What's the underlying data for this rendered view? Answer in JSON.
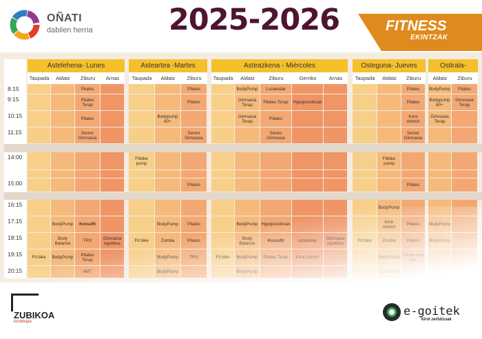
{
  "header": {
    "town": "OÑATI",
    "town_sub": "dabilen herria",
    "season": "2025-2026",
    "fitness_title": "FITNESS",
    "fitness_sub": "EKINTZAK"
  },
  "colors": {
    "yellow_head": "#f4c02b",
    "taupada": "#f7cf89",
    "aldatz": "#f5ba7b",
    "ziburu": "#f3a873",
    "arnas": "#ef9566",
    "gerriko": "#ef9566",
    "season_text": "#4e1430",
    "banner": "#e08a1e"
  },
  "times": [
    "8:15",
    "9:15",
    "10:15",
    "11:15",
    "14:00",
    "15:00",
    "16:15",
    "17:15",
    "18:15",
    "19:15",
    "20:15"
  ],
  "days": [
    {
      "name": "Astelehena- Lunes",
      "rooms": [
        "Taupada",
        "Aldatz",
        "Ziburu",
        "Arnas"
      ]
    },
    {
      "name": "Asteartea -Martes",
      "rooms": [
        "Taupada",
        "Aldatz",
        "Ziburu"
      ]
    },
    {
      "name": "Asteazkena - Miércoles",
      "rooms": [
        "Taupada",
        "Aldatz",
        "Ziburu",
        "Gerriko",
        "Arnas"
      ]
    },
    {
      "name": "Osteguna- Jueves",
      "rooms": [
        "Taupada",
        "Aldatz",
        "Ziburu"
      ]
    },
    {
      "name": "Ostirala- Viernes",
      "rooms": [
        "Aldatz",
        "Ziburu"
      ]
    }
  ],
  "classes": {
    "mon_0815_ziburu": "Pilates",
    "mon_0915_ziburu": "Pilates Terap",
    "mon_1015_ziburu": "Pilates",
    "mon_1115_ziburu": "Senior Gimnasia",
    "mon_1715_aldatz": "BodyPump",
    "mon_1715_ziburu": "Krossfit",
    "mon_1815_aldatz": "Body Balance",
    "mon_1815_ziburu": "TRX",
    "mon_1815_arnas": "Gimnasia egokitua",
    "mon_1915_taupada": "Fit bike",
    "mon_1915_aldatz": "BodyPump",
    "mon_1915_ziburu": "Pilates Terap",
    "mon_2015_ziburu": "HIIT",
    "tue_0815_ziburu": "Pilates",
    "tue_0915_ziburu": "Pilates",
    "tue_1015_aldatz": "Bodypump 60+",
    "tue_1115_ziburu": "Senior Gimnasia",
    "tue_1400_taupada": "Fitbike pump",
    "tue_1500_ziburu": "Pilates",
    "tue_1715_aldatz": "BodyPump",
    "tue_1715_ziburu": "Pilates",
    "tue_1815_taupada": "Fit bike",
    "tue_1815_aldatz": "Zumba",
    "tue_1815_ziburu": "Pilates",
    "tue_1915_aldatz": "BodyPump",
    "tue_1915_ziburu": "TRX",
    "tue_2015_aldatz": "BodyPump",
    "wed_0815_aldatz": "BodyPump",
    "wed_0815_ziburu": "Luzaketak",
    "wed_0915_aldatz": "Gimnasia Terap",
    "wed_0915_ziburu": "Pilates Terap",
    "wed_0915_gerriko": "Hypopresiboak",
    "wed_1015_aldatz": "Gimnasia Terap",
    "wed_1015_ziburu": "Pilates",
    "wed_1115_ziburu": "Senior Gimnasia",
    "wed_1715_aldatz": "BodyPump",
    "wed_1715_ziburu": "Hypopresiboak",
    "wed_1815_aldatz": "Body Balance",
    "wed_1815_ziburu": "Krossfit",
    "wed_1815_gerriko": "luzaketak",
    "wed_1815_arnas": "Gimnasia egokitua",
    "wed_1915_taupada": "Fit bike",
    "wed_1915_aldatz": "BodyPump",
    "wed_1915_ziburu": "Pilates Terap",
    "wed_1915_gerriko": "Kore stretch",
    "wed_2015_aldatz": "BodyPump",
    "thu_0815_ziburu": "Pilates",
    "thu_0915_ziburu": "Pilates",
    "thu_1015_ziburu": "Kore stretch",
    "thu_1115_ziburu": "Senior Gimnasia",
    "thu_1400_aldatz": "Fitbike pump",
    "thu_1500_ziburu": "Pilates",
    "thu_1615_aldatz": "BodyPump",
    "thu_1715_aldatz": "kore stretch",
    "thu_1715_ziburu": "Pilates",
    "thu_1815_taupada": "Fit bike",
    "thu_1815_aldatz": "Zumba",
    "thu_1815_ziburu": "Pilates",
    "thu_1915_aldatz": "BodyPump",
    "thu_1915_ziburu": "Cardio kick box",
    "thu_2015_aldatz": "Luzaketak",
    "fri_0815_aldatz": "BodyPump",
    "fri_0815_ziburu": "Pilates",
    "fri_0915_aldatz": "Bodypump 60+",
    "fri_0915_ziburu": "Gimnasia Terap",
    "fri_1015_aldatz": "Gimnasia Terap",
    "fri_1715_aldatz": "BodyPump",
    "fri_1815_aldatz": "BodyPump"
  },
  "footer": {
    "zubikoa_name": "ZUBIKOA",
    "zubikoa_sub": "kiroldegia",
    "egoitek_name": "e-goitek",
    "egoitek_sub": "kirol zerbitzuak"
  }
}
